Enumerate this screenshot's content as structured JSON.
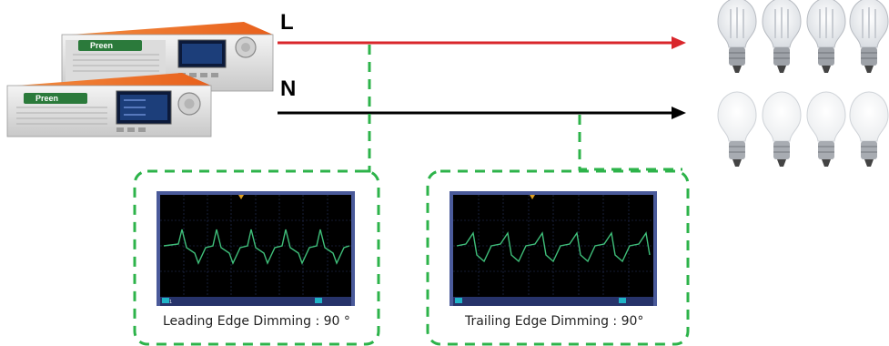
{
  "lines": {
    "live_label": "L",
    "neutral_label": "N",
    "live_color": "#d9262b",
    "neutral_color": "#000000",
    "tap_color": "#2db34a"
  },
  "power_supply": {
    "brand": "Preen",
    "units": 2,
    "accent_color": "#f06a1c"
  },
  "scopes": [
    {
      "caption": "Leading Edge Dimming : 90 °",
      "waveform": "leading-edge",
      "trace_color": "#3fbf7a"
    },
    {
      "caption": "Trailing Edge Dimming : 90°",
      "waveform": "trailing-edge",
      "trace_color": "#3fbf7a"
    }
  ],
  "bulbs": {
    "top_row": {
      "count": 4,
      "state": "on",
      "icon": "led-bulb-icon"
    },
    "bottom_row": {
      "count": 4,
      "state": "off",
      "icon": "led-bulb-icon"
    }
  }
}
